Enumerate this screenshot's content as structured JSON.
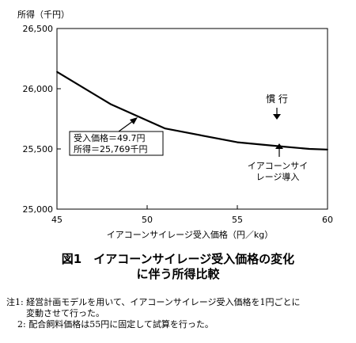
{
  "chart_data": {
    "type": "line",
    "ylabel": "所得（千円）",
    "xlabel": "イアコーンサイレージ受入価格（円／kg）",
    "xlim": [
      45,
      60
    ],
    "ylim": [
      25000,
      26500
    ],
    "xticks": [
      "45",
      "50",
      "55",
      "60"
    ],
    "yticks": [
      "25,000",
      "25,500",
      "26,000",
      "26,500"
    ],
    "grid": false,
    "series": [
      {
        "x": [
          45,
          48,
          51,
          55,
          57.5,
          59,
          60
        ],
        "y": [
          26140,
          25870,
          25670,
          25555,
          25520,
          25500,
          25495
        ]
      }
    ],
    "annotations": {
      "point_box": [
        "受入価格＝49.7円",
        "所得＝25,769千円"
      ],
      "conventional": "慣 行",
      "right_label": [
        "イアコーンサイ",
        "レージ導入"
      ]
    }
  },
  "figure_caption": [
    "図1　イアコーンサイレージ受入価格の変化",
    "に伴う所得比較"
  ],
  "notes": [
    "注1: 経営計画モデルを用いて、イアコーンサイレージ受入価格を1円ごとに",
    "変動させて行った。",
    "2: 配合飼料価格は55円に固定して試算を行った。"
  ]
}
